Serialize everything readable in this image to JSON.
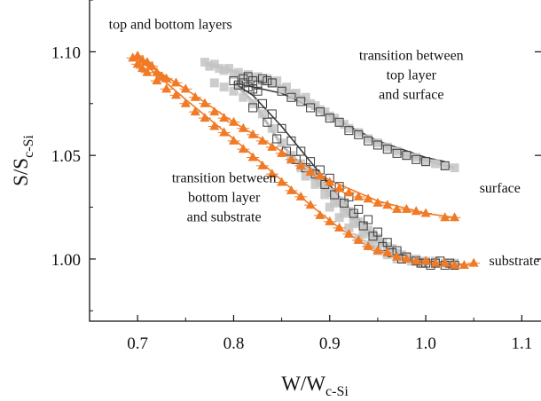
{
  "chart_data": {
    "type": "scatter",
    "xlabel_main": "W/W",
    "xlabel_sub": "c-Si",
    "ylabel_main": "S/S",
    "ylabel_sub": "c-Si",
    "xlim": [
      0.65,
      1.12
    ],
    "ylim": [
      0.97,
      1.125
    ],
    "xticks": [
      0.7,
      0.8,
      0.9,
      1.0,
      1.1
    ],
    "xtick_labels": [
      "0.7",
      "0.8",
      "0.9",
      "1.0",
      "1.1"
    ],
    "yticks": [
      1.0,
      1.05,
      1.1
    ],
    "ytick_labels": [
      "1.00",
      "1.05",
      "1.10"
    ],
    "grid": false,
    "colors": {
      "orange": "#f07a26",
      "gray_fill": "#c4c4c4",
      "dark": "#3a3a3a",
      "axis": "#111111"
    },
    "annotations": [
      {
        "lines": [
          "top and bottom layers"
        ],
        "x": 0.67,
        "y": 1.111
      },
      {
        "lines": [
          "transition between",
          "top layer",
          "and surface"
        ],
        "x": 0.985,
        "y": 1.096
      },
      {
        "lines": [
          "transition between",
          "bottom layer",
          "and substrate"
        ],
        "x": 0.79,
        "y": 1.037
      },
      {
        "lines": [
          "surface"
        ],
        "x": 1.056,
        "y": 1.032
      },
      {
        "lines": [
          "substrate"
        ],
        "x": 1.066,
        "y": 0.997
      }
    ],
    "series": [
      {
        "marker": "gray-square",
        "points": [
          [
            0.77,
            1.095
          ],
          [
            0.775,
            1.093
          ],
          [
            0.78,
            1.094
          ],
          [
            0.785,
            1.092
          ],
          [
            0.79,
            1.091
          ],
          [
            0.795,
            1.092
          ],
          [
            0.8,
            1.089
          ],
          [
            0.805,
            1.09
          ],
          [
            0.81,
            1.088
          ],
          [
            0.815,
            1.089
          ],
          [
            0.82,
            1.087
          ],
          [
            0.825,
            1.088
          ],
          [
            0.83,
            1.086
          ],
          [
            0.835,
            1.087
          ],
          [
            0.84,
            1.085
          ],
          [
            0.845,
            1.086
          ],
          [
            0.85,
            1.082
          ],
          [
            0.855,
            1.083
          ],
          [
            0.86,
            1.079
          ],
          [
            0.865,
            1.08
          ],
          [
            0.87,
            1.077
          ],
          [
            0.875,
            1.078
          ],
          [
            0.88,
            1.075
          ],
          [
            0.885,
            1.074
          ],
          [
            0.89,
            1.072
          ],
          [
            0.895,
            1.071
          ],
          [
            0.9,
            1.069
          ],
          [
            0.905,
            1.068
          ],
          [
            0.91,
            1.066
          ],
          [
            0.915,
            1.065
          ],
          [
            0.92,
            1.063
          ],
          [
            0.93,
            1.061
          ],
          [
            0.94,
            1.058
          ],
          [
            0.95,
            1.056
          ],
          [
            0.96,
            1.054
          ],
          [
            0.97,
            1.052
          ],
          [
            0.98,
            1.05
          ],
          [
            0.99,
            1.049
          ],
          [
            1.0,
            1.047
          ],
          [
            1.01,
            1.046
          ],
          [
            1.02,
            1.045
          ],
          [
            1.03,
            1.044
          ],
          [
            0.78,
            1.085
          ],
          [
            0.79,
            1.083
          ],
          [
            0.8,
            1.081
          ],
          [
            0.81,
            1.078
          ],
          [
            0.82,
            1.075
          ],
          [
            0.83,
            1.07
          ],
          [
            0.84,
            1.063
          ],
          [
            0.85,
            1.056
          ],
          [
            0.86,
            1.05
          ],
          [
            0.87,
            1.046
          ],
          [
            0.88,
            1.042
          ],
          [
            0.885,
            1.04
          ],
          [
            0.89,
            1.037
          ],
          [
            0.895,
            1.035
          ],
          [
            0.9,
            1.032
          ],
          [
            0.905,
            1.03
          ],
          [
            0.91,
            1.028
          ],
          [
            0.915,
            1.026
          ],
          [
            0.92,
            1.023
          ],
          [
            0.925,
            1.021
          ],
          [
            0.93,
            1.018
          ],
          [
            0.935,
            1.016
          ],
          [
            0.94,
            1.014
          ],
          [
            0.945,
            1.012
          ],
          [
            0.95,
            1.01
          ],
          [
            0.955,
            1.008
          ],
          [
            0.96,
            1.006
          ],
          [
            0.965,
            1.005
          ],
          [
            0.97,
            1.003
          ],
          [
            0.975,
            1.002
          ],
          [
            0.98,
            1.001
          ],
          [
            0.99,
            1.0
          ],
          [
            1.0,
            0.999
          ],
          [
            1.01,
            0.999
          ],
          [
            1.02,
            0.998
          ],
          [
            1.03,
            0.998
          ],
          [
            0.9,
            1.025
          ],
          [
            0.91,
            1.02
          ],
          [
            0.92,
            1.015
          ],
          [
            0.93,
            1.01
          ],
          [
            0.94,
            1.007
          ],
          [
            0.95,
            1.004
          ],
          [
            0.96,
            1.002
          ],
          [
            0.97,
            1.0
          ],
          [
            0.985,
            0.999
          ],
          [
            0.995,
            0.998
          ],
          [
            0.86,
            1.048
          ],
          [
            0.87,
            1.044
          ],
          [
            0.875,
            1.04
          ],
          [
            0.885,
            1.036
          ],
          [
            0.895,
            1.031
          ],
          [
            0.905,
            1.027
          ],
          [
            0.915,
            1.022
          ],
          [
            0.925,
            1.017
          ],
          [
            0.935,
            1.012
          ],
          [
            0.945,
            1.008
          ]
        ]
      },
      {
        "marker": "dark-square",
        "points": [
          [
            0.8,
            1.086
          ],
          [
            0.805,
            1.084
          ],
          [
            0.81,
            1.085
          ],
          [
            0.815,
            1.083
          ],
          [
            0.82,
            1.086
          ],
          [
            0.825,
            1.084
          ],
          [
            0.81,
            1.087
          ],
          [
            0.815,
            1.088
          ],
          [
            0.82,
            1.082
          ],
          [
            0.825,
            1.081
          ],
          [
            0.83,
            1.087
          ],
          [
            0.835,
            1.086
          ],
          [
            0.84,
            1.085
          ],
          [
            0.85,
            1.081
          ],
          [
            0.86,
            1.078
          ],
          [
            0.87,
            1.076
          ],
          [
            0.88,
            1.073
          ],
          [
            0.89,
            1.071
          ],
          [
            0.9,
            1.068
          ],
          [
            0.91,
            1.066
          ],
          [
            0.92,
            1.062
          ],
          [
            0.93,
            1.06
          ],
          [
            0.94,
            1.057
          ],
          [
            0.95,
            1.055
          ],
          [
            0.96,
            1.053
          ],
          [
            0.97,
            1.051
          ],
          [
            0.98,
            1.05
          ],
          [
            0.99,
            1.048
          ],
          [
            1.0,
            1.047
          ],
          [
            1.02,
            1.045
          ],
          [
            0.83,
            1.075
          ],
          [
            0.84,
            1.07
          ],
          [
            0.85,
            1.063
          ],
          [
            0.86,
            1.057
          ],
          [
            0.87,
            1.052
          ],
          [
            0.88,
            1.047
          ],
          [
            0.89,
            1.043
          ],
          [
            0.9,
            1.039
          ],
          [
            0.91,
            1.035
          ],
          [
            0.92,
            1.03
          ],
          [
            0.93,
            1.024
          ],
          [
            0.94,
            1.019
          ],
          [
            0.95,
            1.013
          ],
          [
            0.96,
            1.008
          ],
          [
            0.97,
            1.004
          ],
          [
            0.98,
            1.001
          ],
          [
            0.99,
            0.999
          ],
          [
            1.0,
            0.998
          ],
          [
            1.01,
            0.998
          ],
          [
            1.02,
            0.997
          ],
          [
            1.03,
            0.997
          ],
          [
            0.82,
            1.073
          ],
          [
            0.835,
            1.066
          ],
          [
            0.845,
            1.058
          ],
          [
            0.855,
            1.052
          ],
          [
            0.865,
            1.048
          ],
          [
            0.875,
            1.044
          ],
          [
            0.885,
            1.041
          ],
          [
            0.895,
            1.036
          ],
          [
            0.905,
            1.031
          ],
          [
            0.915,
            1.027
          ],
          [
            0.925,
            1.022
          ],
          [
            0.935,
            1.016
          ],
          [
            0.945,
            1.011
          ],
          [
            0.955,
            1.006
          ],
          [
            0.965,
            1.003
          ],
          [
            0.975,
            1.0
          ],
          [
            0.995,
            0.998
          ],
          [
            1.005,
            0.997
          ],
          [
            1.015,
            0.999
          ],
          [
            1.025,
            0.998
          ]
        ]
      },
      {
        "marker": "orange-triangle",
        "points": [
          [
            0.695,
            1.097
          ],
          [
            0.7,
            1.098
          ],
          [
            0.705,
            1.096
          ],
          [
            0.71,
            1.095
          ],
          [
            0.715,
            1.093
          ],
          [
            0.7,
            1.094
          ],
          [
            0.705,
            1.092
          ],
          [
            0.72,
            1.09
          ],
          [
            0.725,
            1.088
          ],
          [
            0.73,
            1.087
          ],
          [
            0.74,
            1.085
          ],
          [
            0.75,
            1.082
          ],
          [
            0.76,
            1.078
          ],
          [
            0.77,
            1.075
          ],
          [
            0.78,
            1.071
          ],
          [
            0.79,
            1.068
          ],
          [
            0.8,
            1.066
          ],
          [
            0.81,
            1.063
          ],
          [
            0.82,
            1.06
          ],
          [
            0.83,
            1.057
          ],
          [
            0.84,
            1.054
          ],
          [
            0.85,
            1.051
          ],
          [
            0.86,
            1.048
          ],
          [
            0.87,
            1.045
          ],
          [
            0.88,
            1.042
          ],
          [
            0.89,
            1.04
          ],
          [
            0.9,
            1.037
          ],
          [
            0.91,
            1.034
          ],
          [
            0.92,
            1.032
          ],
          [
            0.93,
            1.03
          ],
          [
            0.94,
            1.029
          ],
          [
            0.95,
            1.027
          ],
          [
            0.96,
            1.026
          ],
          [
            0.97,
            1.024
          ],
          [
            0.98,
            1.024
          ],
          [
            0.99,
            1.023
          ],
          [
            1.0,
            1.022
          ],
          [
            1.02,
            1.02
          ],
          [
            1.03,
            1.02
          ],
          [
            0.71,
            1.09
          ],
          [
            0.72,
            1.086
          ],
          [
            0.73,
            1.082
          ],
          [
            0.74,
            1.079
          ],
          [
            0.75,
            1.075
          ],
          [
            0.76,
            1.071
          ],
          [
            0.77,
            1.068
          ],
          [
            0.78,
            1.064
          ],
          [
            0.79,
            1.061
          ],
          [
            0.8,
            1.057
          ],
          [
            0.81,
            1.053
          ],
          [
            0.82,
            1.049
          ],
          [
            0.83,
            1.045
          ],
          [
            0.84,
            1.041
          ],
          [
            0.85,
            1.037
          ],
          [
            0.86,
            1.033
          ],
          [
            0.87,
            1.03
          ],
          [
            0.88,
            1.026
          ],
          [
            0.89,
            1.021
          ],
          [
            0.9,
            1.018
          ],
          [
            0.91,
            1.015
          ],
          [
            0.92,
            1.012
          ],
          [
            0.93,
            1.009
          ],
          [
            0.94,
            1.006
          ],
          [
            0.95,
            1.004
          ],
          [
            0.96,
            1.003
          ],
          [
            0.97,
            1.001
          ],
          [
            0.98,
            1.0
          ],
          [
            0.99,
            0.999
          ],
          [
            1.0,
            0.999
          ],
          [
            1.01,
            0.998
          ],
          [
            1.02,
            0.998
          ],
          [
            1.03,
            0.997
          ],
          [
            1.04,
            0.997
          ],
          [
            1.05,
            0.998
          ]
        ]
      }
    ],
    "fit_lines": [
      {
        "color": "gray",
        "points": [
          [
            0.775,
            1.094
          ],
          [
            0.82,
            1.088
          ],
          [
            0.86,
            1.081
          ],
          [
            0.9,
            1.07
          ],
          [
            0.94,
            1.058
          ],
          [
            0.98,
            1.05
          ],
          [
            1.03,
            1.044
          ]
        ]
      },
      {
        "color": "dark",
        "points": [
          [
            0.8,
            1.085
          ],
          [
            0.85,
            1.08
          ],
          [
            0.9,
            1.069
          ],
          [
            0.95,
            1.057
          ],
          [
            1.0,
            1.049
          ],
          [
            1.02,
            1.047
          ]
        ]
      },
      {
        "color": "dark",
        "points": [
          [
            0.8,
            1.085
          ],
          [
            0.82,
            1.079
          ],
          [
            0.85,
            1.064
          ],
          [
            0.88,
            1.047
          ],
          [
            0.91,
            1.03
          ],
          [
            0.94,
            1.014
          ],
          [
            0.97,
            1.003
          ],
          [
            1.0,
            0.998
          ],
          [
            1.03,
            0.997
          ]
        ]
      },
      {
        "color": "gray",
        "points": [
          [
            0.8,
            1.085
          ],
          [
            0.82,
            1.076
          ],
          [
            0.85,
            1.055
          ],
          [
            0.88,
            1.041
          ],
          [
            0.91,
            1.026
          ],
          [
            0.94,
            1.012
          ],
          [
            0.97,
            1.002
          ],
          [
            1.0,
            0.998
          ],
          [
            1.03,
            0.998
          ]
        ]
      },
      {
        "color": "orange",
        "points": [
          [
            0.7,
            1.097
          ],
          [
            0.75,
            1.082
          ],
          [
            0.8,
            1.066
          ],
          [
            0.85,
            1.052
          ],
          [
            0.9,
            1.038
          ],
          [
            0.95,
            1.028
          ],
          [
            1.0,
            1.022
          ],
          [
            1.03,
            1.02
          ]
        ]
      },
      {
        "color": "orange",
        "points": [
          [
            0.7,
            1.097
          ],
          [
            0.75,
            1.077
          ],
          [
            0.8,
            1.058
          ],
          [
            0.85,
            1.038
          ],
          [
            0.88,
            1.026
          ],
          [
            0.91,
            1.015
          ],
          [
            0.94,
            1.006
          ],
          [
            0.97,
            1.001
          ],
          [
            1.0,
            0.999
          ],
          [
            1.05,
            0.997
          ]
        ]
      }
    ]
  }
}
